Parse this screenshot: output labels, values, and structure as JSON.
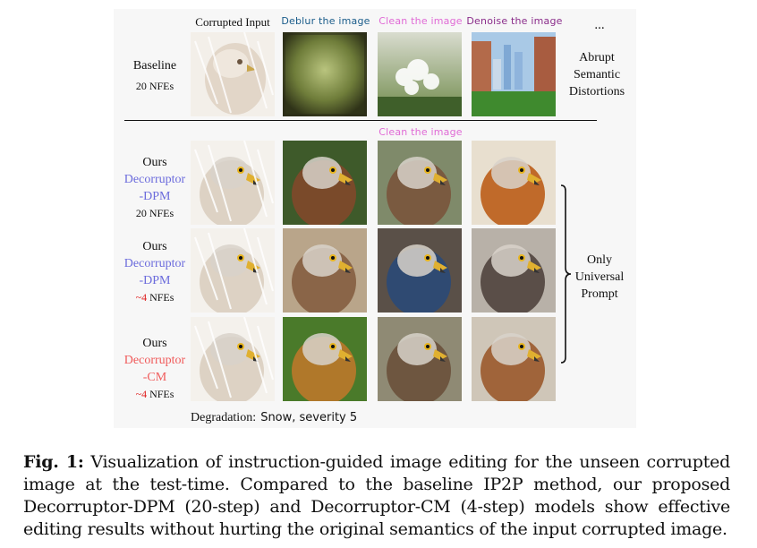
{
  "figure": {
    "column_headers": {
      "corrupted": "Corrupted Input",
      "deblur": "Deblur the image",
      "clean": "Clean the image",
      "denoise": "Denoise the image",
      "ellipsis": "..."
    },
    "mid_prompt": "Clean the image",
    "baseline": {
      "name": "Baseline",
      "nfe": "20 NFEs"
    },
    "abrupt_note": [
      "Abrupt",
      "Semantic",
      "Distortions"
    ],
    "rows": [
      {
        "ours": "Ours",
        "model_a": "Decorruptor",
        "model_b": "-DPM",
        "nfe_num": "",
        "nfe": "20 NFEs"
      },
      {
        "ours": "Ours",
        "model_a": "Decorruptor",
        "model_b": "-DPM",
        "nfe_num": "~4",
        "nfe": " NFEs"
      },
      {
        "ours": "Ours",
        "model_a": "Decorruptor",
        "model_b": "-CM",
        "nfe_num": "~4",
        "nfe": " NFEs"
      }
    ],
    "universal_note": [
      "Only",
      "Universal",
      "Prompt"
    ],
    "degradation_label": "Degradation:",
    "degradation_value": "Snow, severity 5",
    "colors": {
      "deblur": "#1a5c8a",
      "clean": "#e06ad6",
      "denoise": "#8a2c8a",
      "dpm": "#6b6bdc",
      "cm": "#f05a5a",
      "approx": "#e02020"
    }
  },
  "caption": {
    "label": "Fig. 1:",
    "text": " Visualization of instruction-guided image editing for the unseen corrupted image at the test-time. Compared to the baseline IP2P method, our proposed Decorruptor-DPM (20-step) and Decorruptor-CM (4-step) models show effective editing results without hurting the original semantics of the input corrupted image."
  }
}
